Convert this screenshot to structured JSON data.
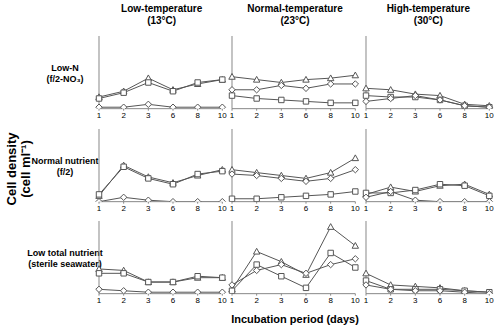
{
  "column_titles": [
    "Low-temperature\n(13°C)",
    "Normal-temperature\n(23°C)",
    "High-temperature\n(30°C)"
  ],
  "row_titles": [
    "Low-N\n(f/2-NO₃)",
    "Normal nutrient\n(f/2)",
    "Low total nutrient\n(sterile seawater)"
  ],
  "y_label": "Cell density\n(cell ml⁻¹)",
  "x_label": "Incubation period (days)",
  "chart_data": [
    {
      "type": "line",
      "categories": [
        "1",
        "2",
        "3",
        "6",
        "8",
        "10"
      ],
      "ylim": [
        0,
        2500
      ],
      "tick_labels": "x",
      "series": [
        {
          "color": "#555555",
          "marker": "triangle",
          "values": [
            400,
            600,
            1050,
            650,
            850,
            1000
          ]
        },
        {
          "color": "#555555",
          "marker": "square",
          "values": [
            350,
            550,
            900,
            600,
            900,
            1000
          ]
        },
        {
          "color": "#555555",
          "marker": "diamond",
          "values": [
            50,
            50,
            150,
            50,
            50,
            50
          ]
        }
      ]
    },
    {
      "type": "line",
      "categories": [
        "1",
        "2",
        "3",
        "6",
        "8",
        "10"
      ],
      "ylim": [
        0,
        2500
      ],
      "tick_labels": "x",
      "series": [
        {
          "color": "#555555",
          "marker": "triangle",
          "values": [
            1100,
            1000,
            900,
            1000,
            1050,
            1150
          ]
        },
        {
          "color": "#555555",
          "marker": "square",
          "values": [
            450,
            350,
            300,
            250,
            200,
            200
          ]
        },
        {
          "color": "#555555",
          "marker": "diamond",
          "values": [
            650,
            650,
            800,
            700,
            850,
            850
          ]
        }
      ]
    },
    {
      "type": "line",
      "categories": [
        "1",
        "2",
        "3",
        "6",
        "8",
        "10"
      ],
      "ylim": [
        0,
        2500
      ],
      "tick_labels": "x",
      "series": [
        {
          "color": "#555555",
          "marker": "triangle",
          "values": [
            700,
            650,
            500,
            450,
            150,
            100
          ]
        },
        {
          "color": "#555555",
          "marker": "square",
          "values": [
            450,
            400,
            400,
            300,
            100,
            50
          ]
        },
        {
          "color": "#555555",
          "marker": "diamond",
          "values": [
            250,
            350,
            450,
            300,
            100,
            50
          ]
        }
      ]
    },
    {
      "type": "line",
      "categories": [
        "1",
        "2",
        "3",
        "6",
        "8",
        "10"
      ],
      "ylim": [
        0,
        2500
      ],
      "tick_labels": "x",
      "series": [
        {
          "color": "#555555",
          "marker": "triangle",
          "values": [
            200,
            1250,
            850,
            650,
            900,
            1100
          ]
        },
        {
          "color": "#555555",
          "marker": "square",
          "values": [
            250,
            1200,
            800,
            600,
            950,
            1050
          ]
        },
        {
          "color": "#555555",
          "marker": "diamond",
          "values": [
            0,
            150,
            50,
            0,
            0,
            0
          ]
        }
      ]
    },
    {
      "type": "line",
      "categories": [
        "1",
        "2",
        "3",
        "6",
        "8",
        "10"
      ],
      "ylim": [
        0,
        2500
      ],
      "tick_labels": "x",
      "series": [
        {
          "color": "#555555",
          "marker": "triangle",
          "values": [
            1100,
            1000,
            900,
            800,
            1000,
            1500
          ]
        },
        {
          "color": "#555555",
          "marker": "square",
          "values": [
            100,
            100,
            150,
            200,
            250,
            350
          ]
        },
        {
          "color": "#555555",
          "marker": "diamond",
          "values": [
            950,
            900,
            800,
            700,
            800,
            1100
          ]
        }
      ]
    },
    {
      "type": "line",
      "categories": [
        "1",
        "2",
        "3",
        "6",
        "8",
        "10"
      ],
      "ylim": [
        0,
        2500
      ],
      "tick_labels": "x",
      "series": [
        {
          "color": "#555555",
          "marker": "triangle",
          "values": [
            250,
            500,
            350,
            550,
            600,
            250
          ]
        },
        {
          "color": "#555555",
          "marker": "square",
          "values": [
            300,
            300,
            400,
            600,
            550,
            200
          ]
        },
        {
          "color": "#555555",
          "marker": "diamond",
          "values": [
            150,
            350,
            50,
            0,
            0,
            0
          ]
        }
      ]
    },
    {
      "type": "line",
      "categories": [
        "1",
        "2",
        "3",
        "6",
        "8",
        "10"
      ],
      "ylim": [
        0,
        2500
      ],
      "tick_labels": "x",
      "series": [
        {
          "color": "#555555",
          "marker": "triangle",
          "values": [
            850,
            800,
            400,
            400,
            550,
            550
          ]
        },
        {
          "color": "#555555",
          "marker": "square",
          "values": [
            700,
            700,
            400,
            400,
            600,
            550
          ]
        },
        {
          "color": "#555555",
          "marker": "diamond",
          "values": [
            150,
            100,
            50,
            50,
            50,
            50
          ]
        }
      ]
    },
    {
      "type": "line",
      "categories": [
        "1",
        "2",
        "3",
        "6",
        "8",
        "10"
      ],
      "ylim": [
        0,
        2500
      ],
      "tick_labels": "x",
      "series": [
        {
          "color": "#555555",
          "marker": "triangle",
          "values": [
            150,
            1450,
            1100,
            650,
            2300,
            1650
          ]
        },
        {
          "color": "#555555",
          "marker": "square",
          "values": [
            100,
            1000,
            600,
            200,
            1400,
            900
          ]
        },
        {
          "color": "#555555",
          "marker": "diamond",
          "values": [
            300,
            800,
            1000,
            700,
            1000,
            1200
          ]
        }
      ]
    },
    {
      "type": "line",
      "categories": [
        "1",
        "2",
        "3",
        "6",
        "8",
        "10"
      ],
      "ylim": [
        0,
        2500
      ],
      "tick_labels": "x",
      "series": [
        {
          "color": "#555555",
          "marker": "triangle",
          "values": [
            700,
            300,
            250,
            200,
            100,
            50
          ]
        },
        {
          "color": "#555555",
          "marker": "square",
          "values": [
            450,
            150,
            150,
            150,
            100,
            50
          ]
        },
        {
          "color": "#555555",
          "marker": "diamond",
          "values": [
            300,
            150,
            100,
            100,
            50,
            0
          ]
        }
      ]
    }
  ]
}
